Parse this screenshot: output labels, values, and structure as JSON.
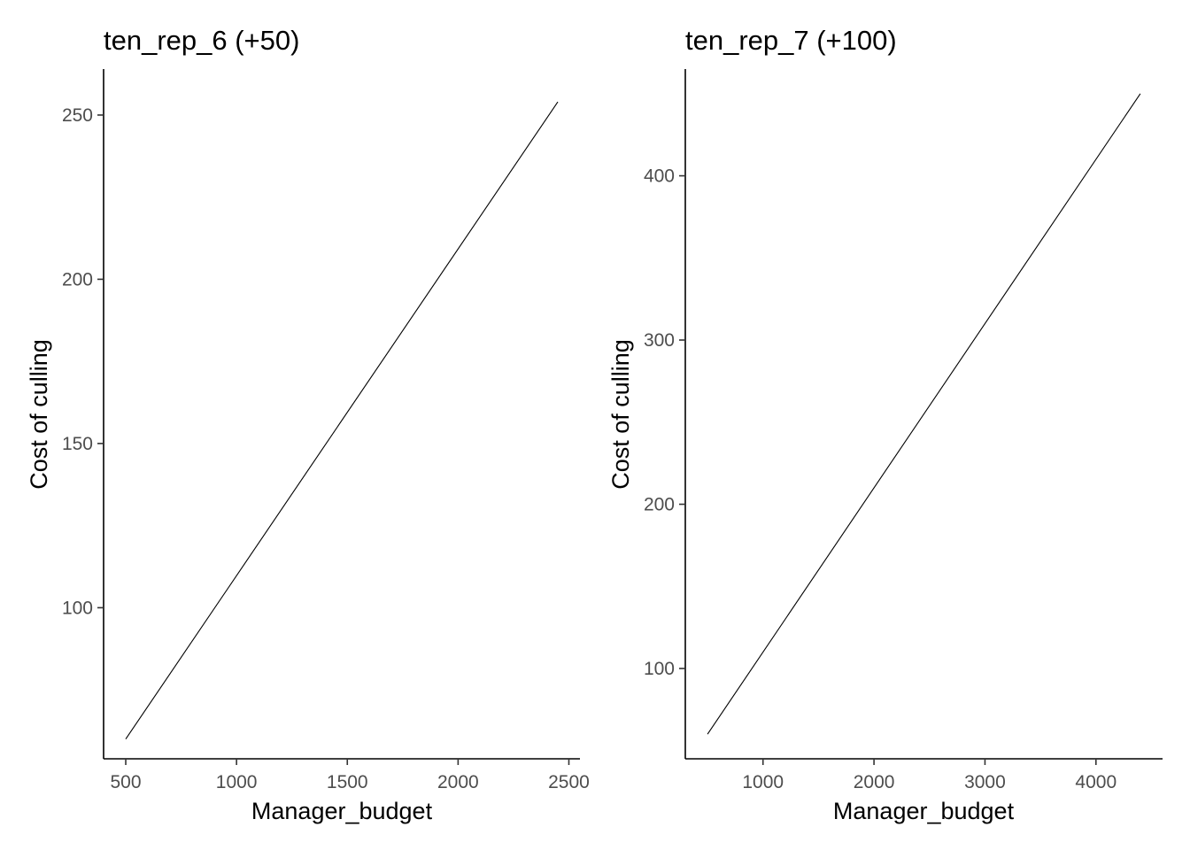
{
  "chart_data": [
    {
      "type": "line",
      "title": "ten_rep_6 (+50)",
      "xlabel": "Manager_budget",
      "ylabel": "Cost of culling",
      "xlim": [
        400,
        2550
      ],
      "ylim": [
        54,
        264
      ],
      "xticks": [
        500,
        1000,
        1500,
        2000,
        2500
      ],
      "yticks": [
        100,
        150,
        200,
        250
      ],
      "grid": false,
      "legend": "none",
      "series": [
        {
          "x": [
            500,
            2450
          ],
          "y": [
            60,
            254
          ]
        }
      ]
    },
    {
      "type": "line",
      "title": "ten_rep_7 (+100)",
      "xlabel": "Manager_budget",
      "ylabel": "Cost of culling",
      "xlim": [
        300,
        4600
      ],
      "ylim": [
        45,
        465
      ],
      "xticks": [
        1000,
        2000,
        3000,
        4000
      ],
      "yticks": [
        100,
        200,
        300,
        400
      ],
      "grid": false,
      "legend": "none",
      "series": [
        {
          "x": [
            500,
            4400
          ],
          "y": [
            60,
            450
          ]
        }
      ]
    }
  ],
  "colors": {
    "line": "#000000",
    "tick_text": "#4d4d4d",
    "background": "#ffffff"
  }
}
